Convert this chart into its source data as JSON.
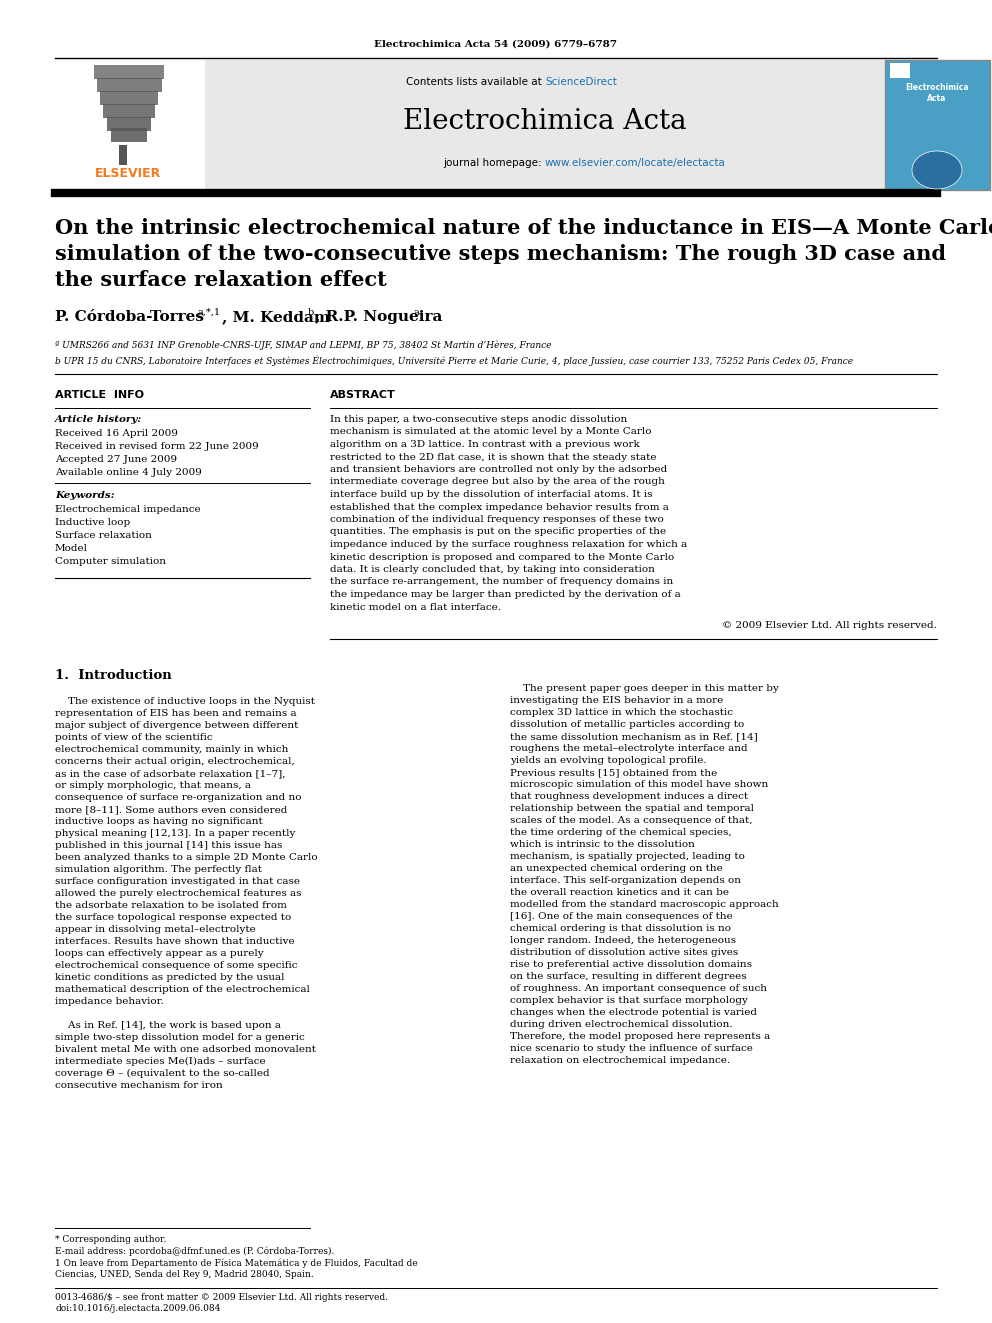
{
  "journal_ref": "Electrochimica Acta 54 (2009) 6779–6787",
  "journal_name": "Electrochimica Acta",
  "journal_url_prefix": "journal homepage: ",
  "journal_url_link": "www.elsevier.com/locate/electacta",
  "contents_prefix": "Contents lists available at ",
  "sciencedirect": "ScienceDirect",
  "title_line1": "On the intrinsic electrochemical nature of the inductance in EIS—A Monte Carlo",
  "title_line2": "simulation of the two-consecutive steps mechanism: The rough 3D case and",
  "title_line3": "the surface relaxation effect",
  "author1": "P. Córdoba-Torres",
  "author1_sup": "a,*,1",
  "author2": ", M. Keddam",
  "author2_sup": "b",
  "author3": ", R.P. Nogueira",
  "author3_sup": "a",
  "affil_a": "ª UMRS266 and 5631 INP Grenoble-CNRS-UJF, SIMAP and LEPMI, BP 75, 38402 St Martin d’Hères, France",
  "affil_b": "b UPR 15 du CNRS, Laboratoire Interfaces et Systèmes Électrochimiques, Université Pierre et Marie Curie, 4, place Jussieu, case courrier 133, 75252 Paris Cedex 05, France",
  "article_info_title": "ARTICLE  INFO",
  "abstract_title": "ABSTRACT",
  "article_history_title": "Article history:",
  "received": "Received 16 April 2009",
  "received_revised": "Received in revised form 22 June 2009",
  "accepted": "Accepted 27 June 2009",
  "available": "Available online 4 July 2009",
  "keywords_title": "Keywords:",
  "keywords": [
    "Electrochemical impedance",
    "Inductive loop",
    "Surface relaxation",
    "Model",
    "Computer simulation"
  ],
  "abstract_text": "In this paper, a two-consecutive steps anodic dissolution mechanism is simulated at the atomic level by a Monte Carlo algorithm on a 3D lattice. In contrast with a previous work restricted to the 2D flat case, it is shown that the steady state and transient behaviors are controlled not only by the adsorbed intermediate coverage degree but also by the area of the rough interface build up by the dissolution of interfacial atoms. It is established that the complex impedance behavior results from a combination of the individual frequency responses of these two quantities. The emphasis is put on the specific properties of the impedance induced by the surface roughness relaxation for which a kinetic description is proposed and compared to the Monte Carlo data. It is clearly concluded that, by taking into consideration the surface re-arrangement, the number of frequency domains in the impedance may be larger than predicted by the derivation of a kinetic model on a flat interface.",
  "copyright": "© 2009 Elsevier Ltd. All rights reserved.",
  "section1_title": "1.  Introduction",
  "intro_p1": "The existence of inductive loops in the Nyquist representation of EIS has been and remains a major subject of divergence between different points of view of the scientific electrochemical community, mainly in which concerns their actual origin, electrochemical, as in the case of adsorbate relaxation [1–7], or simply morphologic, that means, a consequence of surface re-organization and no more [8–11]. Some authors even considered inductive loops as having no significant physical meaning [12,13]. In a paper recently published in this journal [14] this issue has been analyzed thanks to a simple 2D Monte Carlo simulation algorithm. The perfectly flat surface configuration investigated in that case allowed the purely electrochemical features as the adsorbate relaxation to be isolated from the surface topological response expected to appear in dissolving metal–electrolyte interfaces. Results have shown that inductive loops can effectively appear as a purely electrochemical consequence of some specific kinetic conditions as predicted by the usual mathematical description of the electrochemical impedance behavior.",
  "intro_p2": "The present paper goes deeper in this matter by investigating the EIS behavior in a more complex 3D lattice in which the stochastic dissolution of metallic particles according to the same dissolution mechanism as in Ref. [14] roughens the metal–electrolyte interface and yields an evolving topological profile. Previous results [15] obtained from the microscopic simulation of this model have shown that roughness development induces a direct relationship between the spatial and temporal scales of the model. As a consequence of that, the time ordering of the chemical species, which is intrinsic to the dissolution mechanism, is spatially projected, leading to an unexpected chemical ordering on the interface. This self-organization depends on the overall reaction kinetics and it can be modelled from the standard macroscopic approach [16]. One of the main consequences of the chemical ordering is that dissolution is no longer random. Indeed, the heterogeneous distribution of dissolution active sites gives rise to preferential active dissolution domains on the surface, resulting in different degrees of roughness. An important consequence of such complex behavior is that surface morphology changes when the electrode potential is varied during driven electrochemical dissolution. Therefore, the model proposed here represents a nice scenario to study the influence of surface relaxation on electrochemical impedance.",
  "intro_p3": "As in Ref. [14], the work is based upon a simple two-step dissolution model for a generic bivalent metal Me with one adsorbed monovalent intermediate species Me(I)ads – surface coverage Θ – (equivalent to the so-called consecutive mechanism for iron",
  "footnote_star": "* Corresponding author.",
  "footnote_email": "E-mail address: pcordoba@dfmf.uned.es (P. Córdoba-Torres).",
  "footnote_1": "1 On leave from Departamento de Física Matemática y de Fluidos, Facultad de",
  "footnote_1b": "Ciencias, UNED, Senda del Rey 9, Madrid 28040, Spain.",
  "footer_text": "0013-4686/$ – see front matter © 2009 Elsevier Ltd. All rights reserved.",
  "footer_doi": "doi:10.1016/j.electacta.2009.06.084",
  "bg_color": "#ffffff",
  "gray_box": "#e8e8e8",
  "blue_color": "#1a6faf",
  "orange_color": "#f47920",
  "black": "#000000"
}
